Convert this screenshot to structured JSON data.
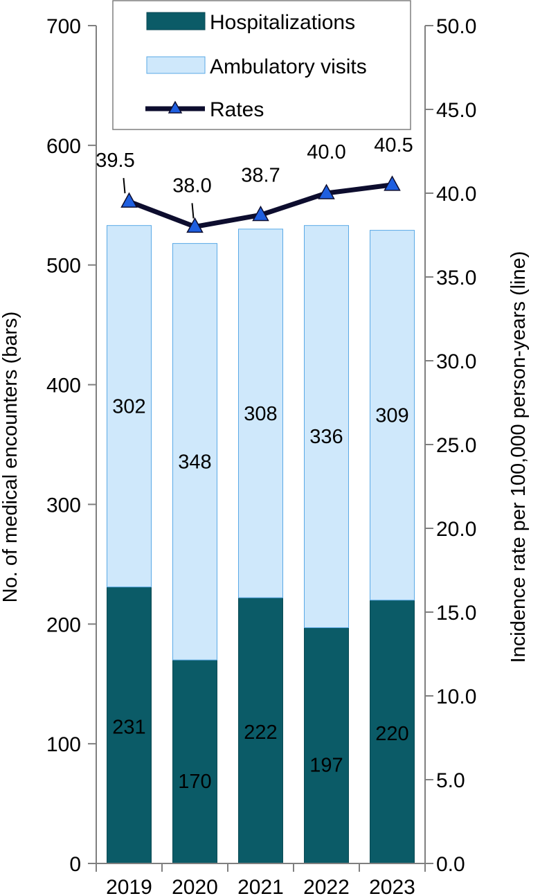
{
  "chart_data": {
    "type": "bar",
    "stacked": true,
    "categories": [
      "2019",
      "2020",
      "2021",
      "2022",
      "2023"
    ],
    "series": [
      {
        "name": "Hospitalizations",
        "values": [
          231,
          170,
          222,
          197,
          220
        ],
        "color": "#0b5b67"
      },
      {
        "name": "Ambulatory visits",
        "values": [
          302,
          348,
          308,
          336,
          309
        ],
        "color": "#cfe8fb"
      }
    ],
    "line_series": {
      "name": "Rates",
      "values": [
        39.5,
        38.0,
        38.7,
        40.0,
        40.5
      ],
      "value_labels": [
        "39.5",
        "38.0",
        "38.7",
        "40.0",
        "40.5"
      ],
      "color": "#0d0d2e",
      "marker": "triangle",
      "marker_color": "#1f5fe0"
    },
    "ylabel": "No. of medical encounters (bars)",
    "y2label": "Incidence rate per 100,000 person-years (line)",
    "ylim": [
      0,
      700
    ],
    "y2lim": [
      0,
      50
    ],
    "yticks": [
      "0",
      "100",
      "200",
      "300",
      "400",
      "500",
      "600",
      "700"
    ],
    "y2ticks": [
      "0.0",
      "5.0",
      "10.0",
      "15.0",
      "20.0",
      "25.0",
      "30.0",
      "35.0",
      "40.0",
      "45.0",
      "50.0"
    ],
    "legend_position": "top-center",
    "grid": false
  }
}
